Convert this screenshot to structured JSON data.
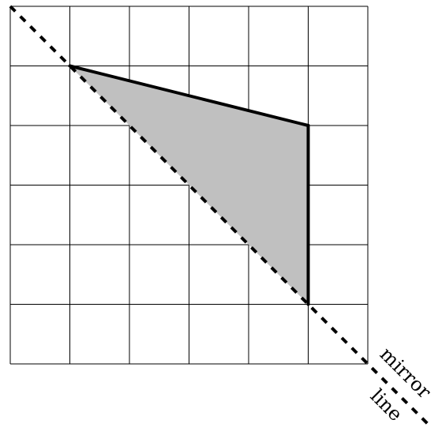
{
  "diagram": {
    "grid": {
      "columns": 6,
      "rows": 6
    },
    "shape": {
      "vertices": [
        [
          1,
          1
        ],
        [
          5,
          2
        ],
        [
          5,
          5
        ]
      ],
      "fill_color": "#c0c0c0",
      "solid_edges": [
        [
          0,
          1
        ],
        [
          1,
          2
        ]
      ],
      "dashed_edge_on_mirror": [
        2,
        0
      ]
    },
    "mirror_line": {
      "from": [
        0,
        0
      ],
      "to": [
        7,
        7
      ],
      "style": "dashed"
    },
    "label": {
      "line1": "mirror",
      "line2": "line"
    }
  }
}
